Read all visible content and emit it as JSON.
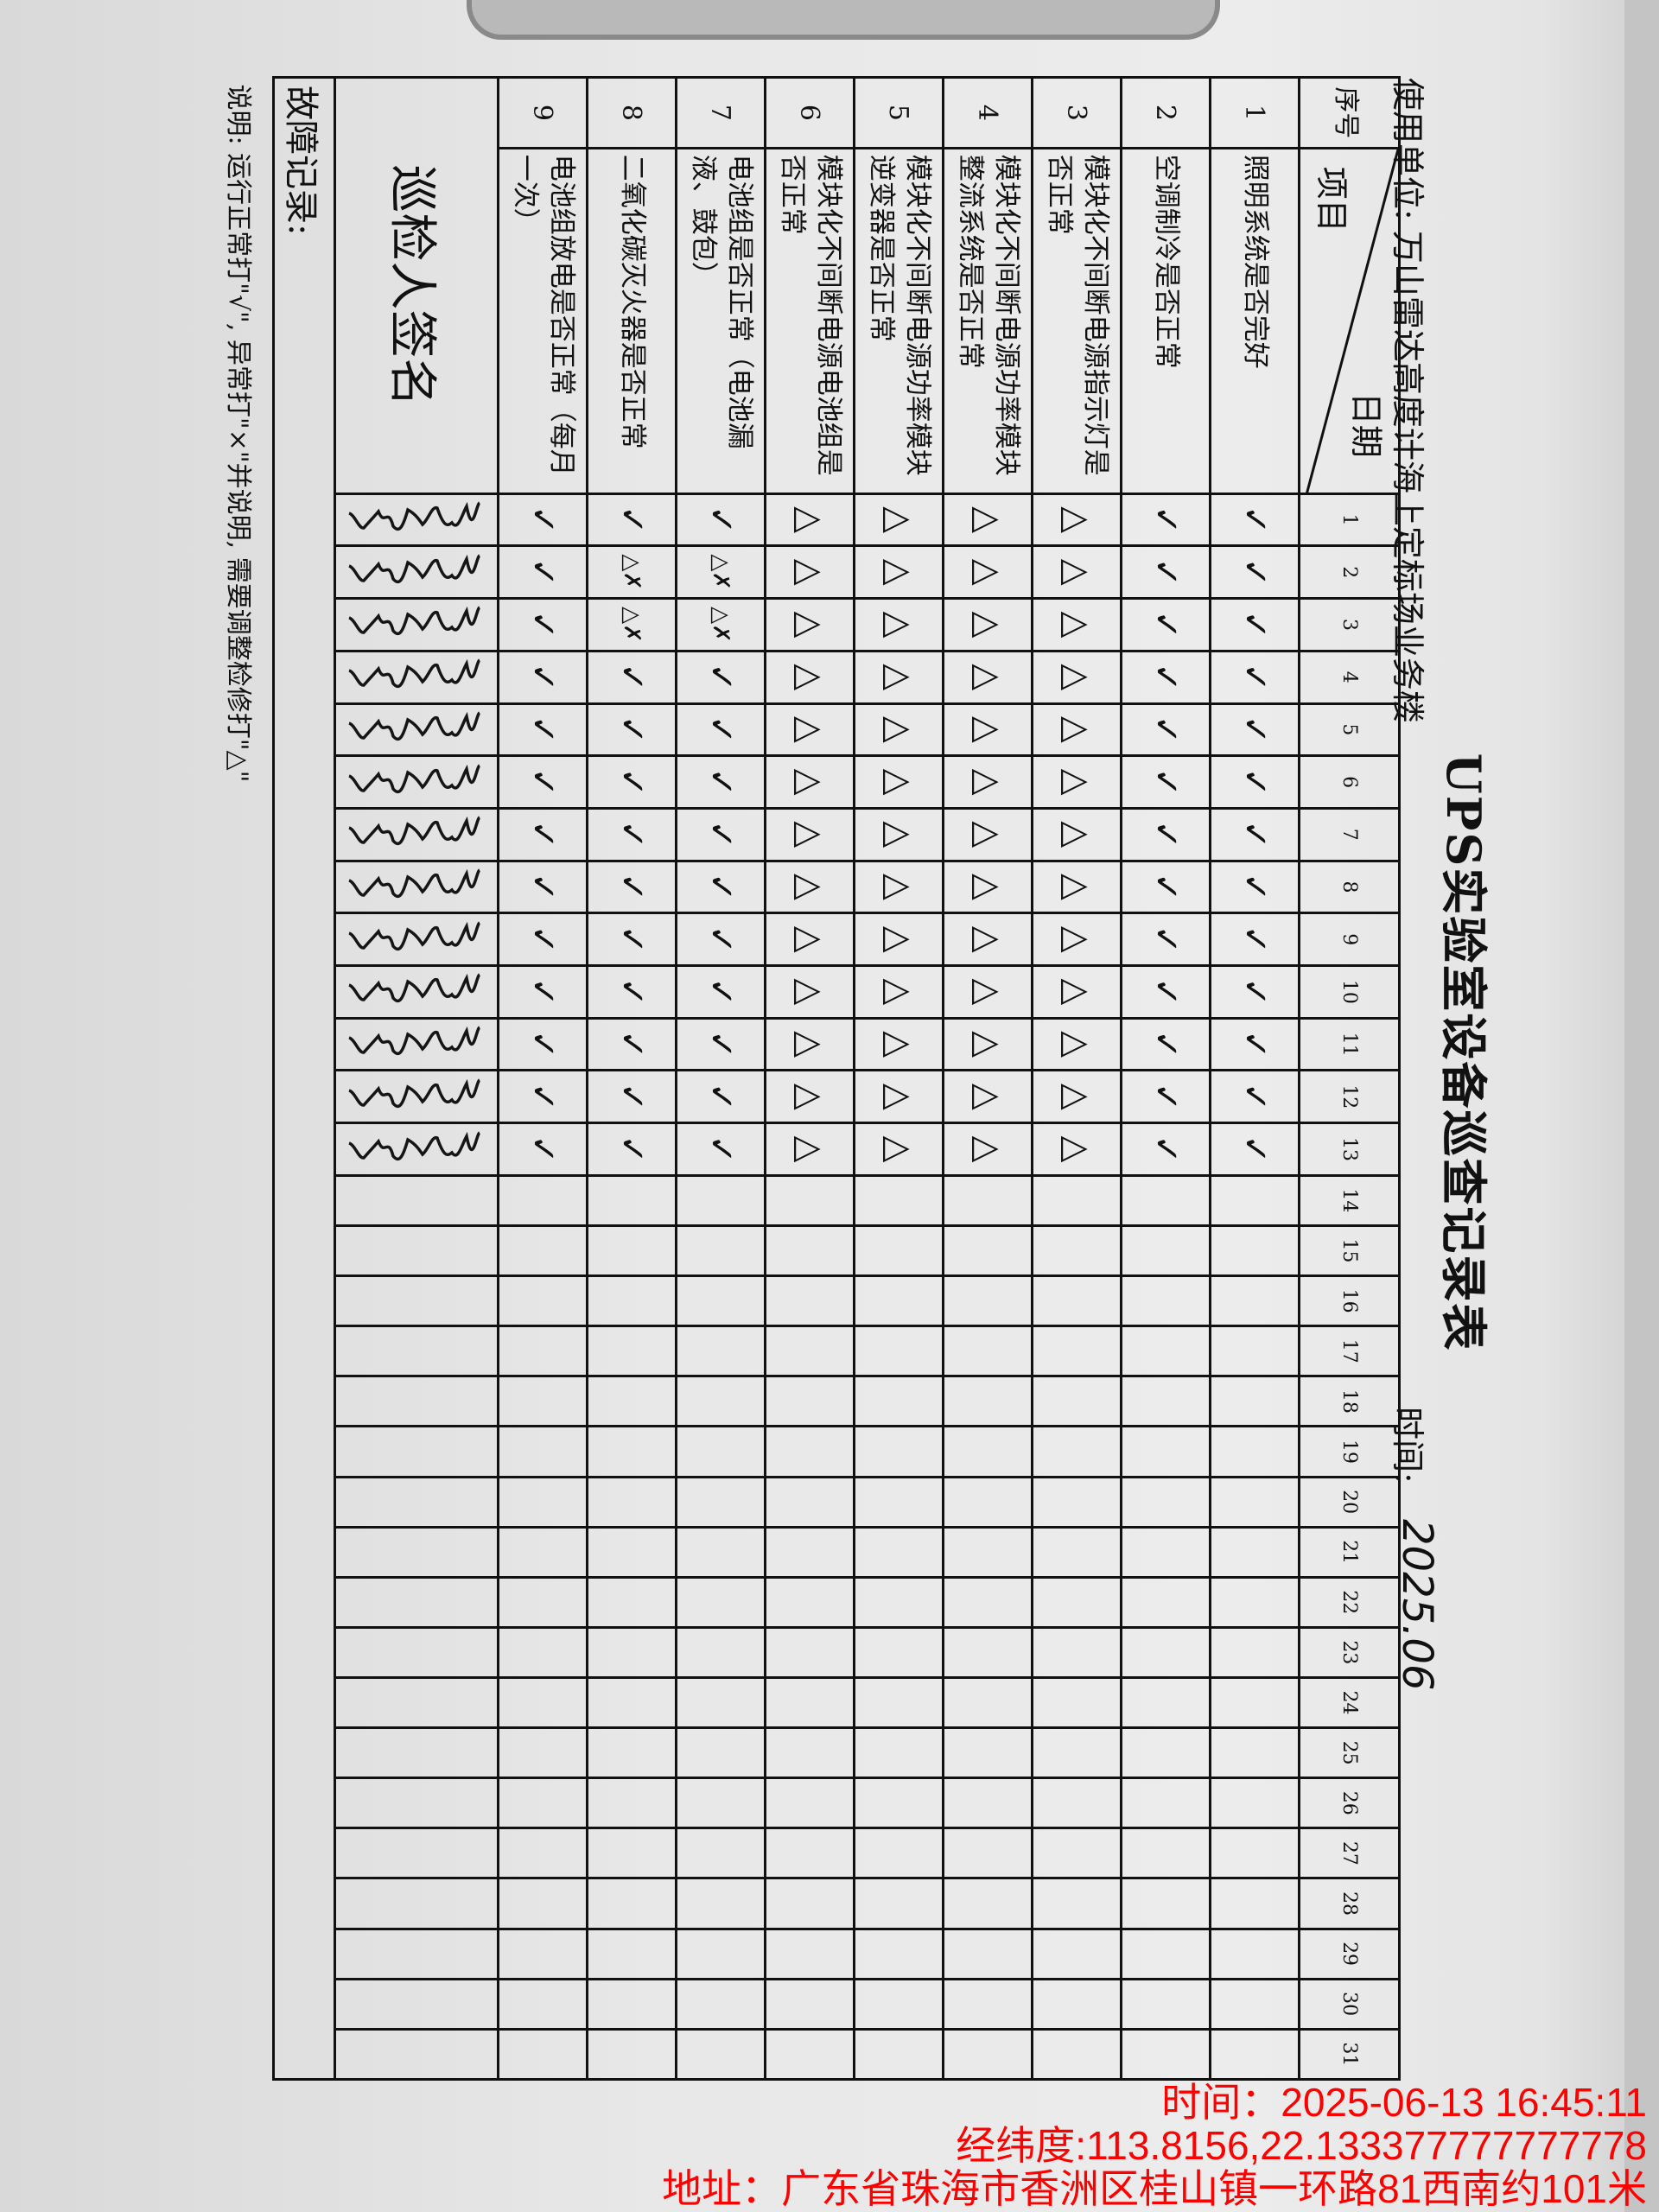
{
  "form": {
    "title": "UPS实验室设备巡查记录表",
    "unit_label": "使用单位: 万山雷达高度计海上定标场业务楼",
    "time_label": "时间:",
    "time_handwritten": "2025.06",
    "header": {
      "seq": "序号",
      "item": "项目",
      "date": "日期"
    },
    "days": [
      "1",
      "2",
      "3",
      "4",
      "5",
      "6",
      "7",
      "8",
      "9",
      "10",
      "11",
      "12",
      "13",
      "14",
      "15",
      "16",
      "17",
      "18",
      "19",
      "20",
      "21",
      "22",
      "23",
      "24",
      "25",
      "26",
      "27",
      "28",
      "29",
      "30",
      "31"
    ],
    "rows": [
      {
        "seq": "1",
        "item": "照明系统是否完好",
        "marks": [
          "✓",
          "✓",
          "✓",
          "✓",
          "✓",
          "✓",
          "✓",
          "✓",
          "✓",
          "✓",
          "✓",
          "✓",
          "✓",
          "",
          "",
          "",
          "",
          "",
          "",
          "",
          "",
          "",
          "",
          "",
          "",
          "",
          "",
          "",
          "",
          "",
          ""
        ]
      },
      {
        "seq": "2",
        "item": "空调制冷是否正常",
        "marks": [
          "✓",
          "✓",
          "✓",
          "✓",
          "✓",
          "✓",
          "✓",
          "✓",
          "✓",
          "✓",
          "✓",
          "✓",
          "✓",
          "",
          "",
          "",
          "",
          "",
          "",
          "",
          "",
          "",
          "",
          "",
          "",
          "",
          "",
          "",
          "",
          "",
          ""
        ]
      },
      {
        "seq": "3",
        "item": "模块化不间断电源指示灯是否正常",
        "marks": [
          "△",
          "△",
          "△",
          "△",
          "△",
          "△",
          "△",
          "△",
          "△",
          "△",
          "△",
          "△",
          "△",
          "",
          "",
          "",
          "",
          "",
          "",
          "",
          "",
          "",
          "",
          "",
          "",
          "",
          "",
          "",
          "",
          "",
          ""
        ]
      },
      {
        "seq": "4",
        "item": "模块化不间断电源功率模块整流系统是否正常",
        "marks": [
          "△",
          "△",
          "△",
          "△",
          "△",
          "△",
          "△",
          "△",
          "△",
          "△",
          "△",
          "△",
          "△",
          "",
          "",
          "",
          "",
          "",
          "",
          "",
          "",
          "",
          "",
          "",
          "",
          "",
          "",
          "",
          "",
          "",
          ""
        ]
      },
      {
        "seq": "5",
        "item": "模块化不间断电源功率模块逆变器是否正常",
        "marks": [
          "△",
          "△",
          "△",
          "△",
          "△",
          "△",
          "△",
          "△",
          "△",
          "△",
          "△",
          "△",
          "△",
          "",
          "",
          "",
          "",
          "",
          "",
          "",
          "",
          "",
          "",
          "",
          "",
          "",
          "",
          "",
          "",
          "",
          ""
        ]
      },
      {
        "seq": "6",
        "item": "模块化不间断电源电池组是否正常",
        "marks": [
          "△",
          "△",
          "△",
          "△",
          "△",
          "△",
          "△",
          "△",
          "△",
          "△",
          "△",
          "△",
          "△",
          "",
          "",
          "",
          "",
          "",
          "",
          "",
          "",
          "",
          "",
          "",
          "",
          "",
          "",
          "",
          "",
          "",
          ""
        ]
      },
      {
        "seq": "7",
        "item": "电池组是否正常（电池漏液、鼓包）",
        "marks": [
          "✓",
          "△✗",
          "△✗",
          "✓",
          "✓",
          "✓",
          "✓",
          "✓",
          "✓",
          "✓",
          "✓",
          "✓",
          "✓",
          "",
          "",
          "",
          "",
          "",
          "",
          "",
          "",
          "",
          "",
          "",
          "",
          "",
          "",
          "",
          "",
          "",
          ""
        ]
      },
      {
        "seq": "8",
        "item": "二氧化碳灭火器是否正常",
        "marks": [
          "✓",
          "△✗",
          "△✗",
          "✓",
          "✓",
          "✓",
          "✓",
          "✓",
          "✓",
          "✓",
          "✓",
          "✓",
          "✓",
          "",
          "",
          "",
          "",
          "",
          "",
          "",
          "",
          "",
          "",
          "",
          "",
          "",
          "",
          "",
          "",
          "",
          ""
        ]
      },
      {
        "seq": "9",
        "item": "电池组放电是否正常（每月一次）",
        "marks": [
          "✓",
          "✓",
          "✓",
          "✓",
          "✓",
          "✓",
          "✓",
          "✓",
          "✓",
          "✓",
          "✓",
          "✓",
          "✓",
          "",
          "",
          "",
          "",
          "",
          "",
          "",
          "",
          "",
          "",
          "",
          "",
          "",
          "",
          "",
          "",
          "",
          ""
        ]
      }
    ],
    "signature_label": "巡检人签名",
    "signed_days": 13,
    "fault_label": "故障记录:",
    "note": "说明: 运行正常打\"√\", 异常打\"×\"并说明, 需要调整检修打\"△\""
  },
  "watermark": {
    "time": "时间：2025-06-13 16:45:11",
    "coords": "经纬度:113.8156,22.133377777777778",
    "address": "地址：广东省珠海市香洲区桂山镇一环路81西南约101米",
    "color": "#ff0000"
  }
}
